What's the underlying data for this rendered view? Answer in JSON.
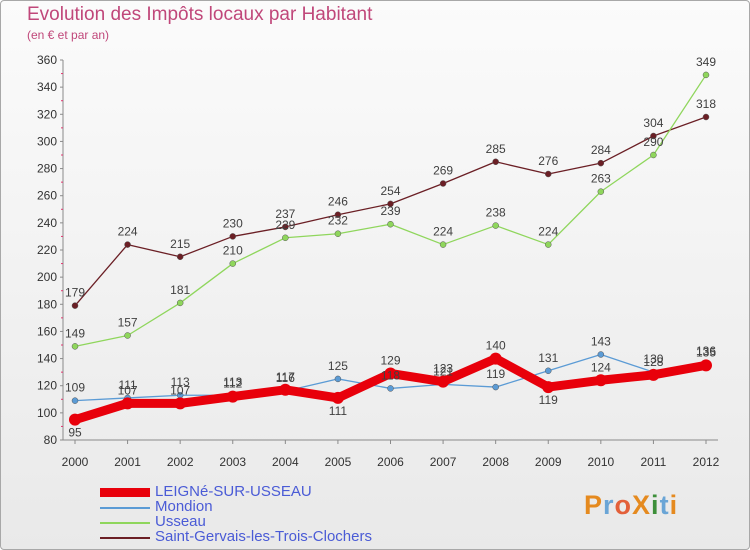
{
  "title": "Evolution des Impôts locaux par Habitant",
  "subtitle": "(en € et par an)",
  "logo": {
    "text": "ProXiti",
    "colors": [
      "#e58a1f",
      "#6aa5d6",
      "#e3603a",
      "#e58a1f",
      "#3d8f3a",
      "#6aa5d6",
      "#e58a1f"
    ]
  },
  "chart_data": {
    "type": "line",
    "x": [
      2000,
      2001,
      2002,
      2003,
      2004,
      2005,
      2006,
      2007,
      2008,
      2009,
      2010,
      2011,
      2012
    ],
    "ylim": [
      80,
      360
    ],
    "yticks": [
      80,
      100,
      120,
      140,
      160,
      180,
      200,
      220,
      240,
      260,
      280,
      300,
      320,
      340,
      360
    ],
    "grid": false,
    "series": [
      {
        "name": "LEIGNé-SUR-USSEAU",
        "color": "#e8000b",
        "values": [
          95,
          107,
          107,
          112,
          117,
          111,
          129,
          123,
          140,
          119,
          124,
          128,
          135
        ],
        "labels": [
          "95",
          "107",
          "107",
          "112",
          "117",
          "111",
          "129",
          "123",
          "140",
          "119",
          "124",
          "128",
          "135"
        ]
      },
      {
        "name": "Mondion",
        "color": "#5b9bd5",
        "values": [
          109,
          111,
          113,
          113,
          116,
          125,
          118,
          121,
          119,
          131,
          143,
          130,
          136
        ],
        "labels": [
          "109",
          "111",
          "113",
          "113",
          "116",
          "125",
          "118",
          "121",
          "119",
          "131",
          "143",
          "130",
          "136"
        ]
      },
      {
        "name": "Usseau",
        "color": "#8fd65c",
        "values": [
          149,
          157,
          181,
          210,
          229,
          232,
          239,
          224,
          238,
          224,
          263,
          290,
          349
        ],
        "labels": [
          "149",
          "157",
          "181",
          "210",
          "229",
          "232",
          "239",
          "224",
          "238",
          "224",
          "263",
          "290",
          "349"
        ]
      },
      {
        "name": "Saint-Gervais-les-Trois-Clochers",
        "color": "#6b1f25",
        "values": [
          179,
          224,
          215,
          230,
          237,
          246,
          254,
          269,
          285,
          276,
          284,
          304,
          318
        ],
        "labels": [
          "179",
          "224",
          "215",
          "230",
          "237",
          "246",
          "254",
          "269",
          "285",
          "276",
          "284",
          "304",
          "318"
        ]
      }
    ],
    "legend_position": "bottom-left"
  }
}
